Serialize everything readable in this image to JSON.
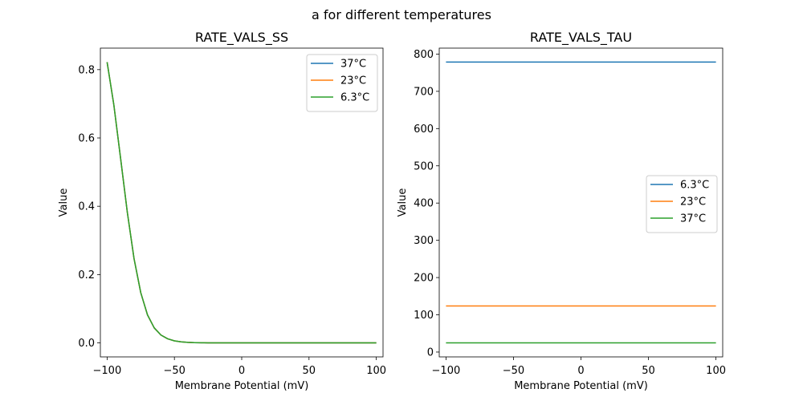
{
  "figure": {
    "suptitle": "a for different temperatures"
  },
  "chart_data": [
    {
      "type": "line",
      "title": "RATE_VALS_SS",
      "xlabel": "Membrane Potential (mV)",
      "ylabel": "Value",
      "xlim": [
        -105,
        105
      ],
      "ylim": [
        -0.041,
        0.863
      ],
      "xticks": [
        -100,
        -50,
        0,
        50,
        100
      ],
      "xtick_labels": [
        "−100",
        "−50",
        "0",
        "50",
        "100"
      ],
      "yticks": [
        0.0,
        0.2,
        0.4,
        0.6,
        0.8
      ],
      "ytick_labels": [
        "0.0",
        "0.2",
        "0.4",
        "0.6",
        "0.8"
      ],
      "legend_loc": "upper right",
      "x": [
        -100,
        -95,
        -90,
        -85,
        -80,
        -75,
        -70,
        -65,
        -60,
        -55,
        -50,
        -45,
        -40,
        -35,
        -30,
        -25,
        -20,
        -10,
        0,
        10,
        25,
        50,
        75,
        100
      ],
      "series": [
        {
          "name": "37°C",
          "color": "#1f77b4",
          "values": [
            0.822,
            0.697,
            0.541,
            0.383,
            0.247,
            0.147,
            0.082,
            0.044,
            0.023,
            0.012,
            0.006,
            0.003,
            0.0015,
            0.0008,
            0.0004,
            0.0002,
            0.0001,
            0,
            0,
            0,
            0,
            0,
            0,
            0
          ]
        },
        {
          "name": "23°C",
          "color": "#ff7f0e",
          "values": [
            0.822,
            0.697,
            0.541,
            0.383,
            0.247,
            0.147,
            0.082,
            0.044,
            0.023,
            0.012,
            0.006,
            0.003,
            0.0015,
            0.0008,
            0.0004,
            0.0002,
            0.0001,
            0,
            0,
            0,
            0,
            0,
            0,
            0
          ]
        },
        {
          "name": "6.3°C",
          "color": "#2ca02c",
          "values": [
            0.822,
            0.697,
            0.541,
            0.383,
            0.247,
            0.147,
            0.082,
            0.044,
            0.023,
            0.012,
            0.006,
            0.003,
            0.0015,
            0.0008,
            0.0004,
            0.0002,
            0.0001,
            0,
            0,
            0,
            0,
            0,
            0,
            0
          ]
        }
      ]
    },
    {
      "type": "line",
      "title": "RATE_VALS_TAU",
      "xlabel": "Membrane Potential (mV)",
      "ylabel": "Value",
      "xlim": [
        -105,
        105
      ],
      "ylim": [
        -13,
        816
      ],
      "xticks": [
        -100,
        -50,
        0,
        50,
        100
      ],
      "xtick_labels": [
        "−100",
        "−50",
        "0",
        "50",
        "100"
      ],
      "yticks": [
        0,
        100,
        200,
        300,
        400,
        500,
        600,
        700,
        800
      ],
      "ytick_labels": [
        "0",
        "100",
        "200",
        "300",
        "400",
        "500",
        "600",
        "700",
        "800"
      ],
      "legend_loc": "center right",
      "x": [
        -100,
        100
      ],
      "series": [
        {
          "name": "6.3°C",
          "color": "#1f77b4",
          "values": [
            778.5,
            778.5
          ]
        },
        {
          "name": "23°C",
          "color": "#ff7f0e",
          "values": [
            123.8,
            123.8
          ]
        },
        {
          "name": "37°C",
          "color": "#2ca02c",
          "values": [
            24.8,
            24.8
          ]
        }
      ]
    }
  ]
}
